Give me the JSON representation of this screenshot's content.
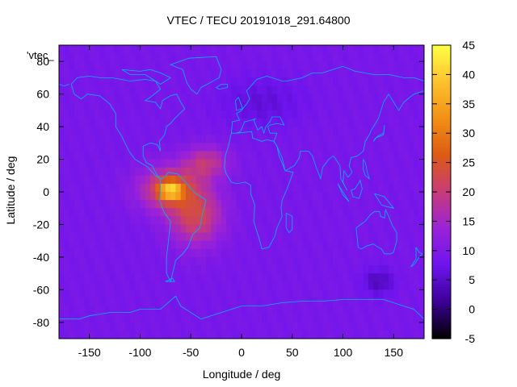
{
  "chart_data": {
    "type": "heatmap",
    "title": "VTEC / TECU 20191018_291.64800",
    "xlabel": "Longitude / deg",
    "ylabel": "Latitude / deg",
    "stray_label": "'vtec_",
    "xlim": [
      -180,
      180
    ],
    "ylim": [
      -90,
      90
    ],
    "x_ticks": [
      -150,
      -100,
      -50,
      0,
      50,
      100,
      150
    ],
    "y_ticks": [
      -80,
      -60,
      -40,
      -20,
      0,
      20,
      40,
      60,
      80
    ],
    "colorbar": {
      "range": [
        -5,
        45
      ],
      "ticks": [
        -5,
        0,
        5,
        10,
        15,
        20,
        25,
        30,
        35,
        40,
        45
      ],
      "colormap": [
        "#000000",
        "#3b0096",
        "#6e14ee",
        "#9a22d8",
        "#c83c78",
        "#dc5a14",
        "#f29016",
        "#fdc22e",
        "#ffff44"
      ]
    },
    "background_value": 9,
    "features": [
      {
        "name": "equatorial-anomaly-core",
        "lon": -72,
        "lat": 2,
        "value": 26,
        "spread_lon": 30,
        "spread_lat": 14
      },
      {
        "name": "south-atlantic-crest",
        "lon": -45,
        "lat": -15,
        "value": 26,
        "spread_lon": 26,
        "spread_lat": 18
      },
      {
        "name": "north-crest",
        "lon": -35,
        "lat": 18,
        "value": 22,
        "spread_lon": 22,
        "spread_lat": 10
      },
      {
        "name": "local-maximum",
        "lon": -70,
        "lat": 1,
        "value": 34,
        "spread_lon": 12,
        "spread_lat": 6
      },
      {
        "name": "south-hemisphere-low",
        "lon": 135,
        "lat": -55,
        "value": 2,
        "spread_lon": 15,
        "spread_lat": 8
      },
      {
        "name": "north-hemisphere-low",
        "lon": 20,
        "lat": 55,
        "value": 5,
        "spread_lon": 40,
        "spread_lat": 15
      }
    ],
    "colors": {
      "coastline": "#00b4ff"
    }
  }
}
